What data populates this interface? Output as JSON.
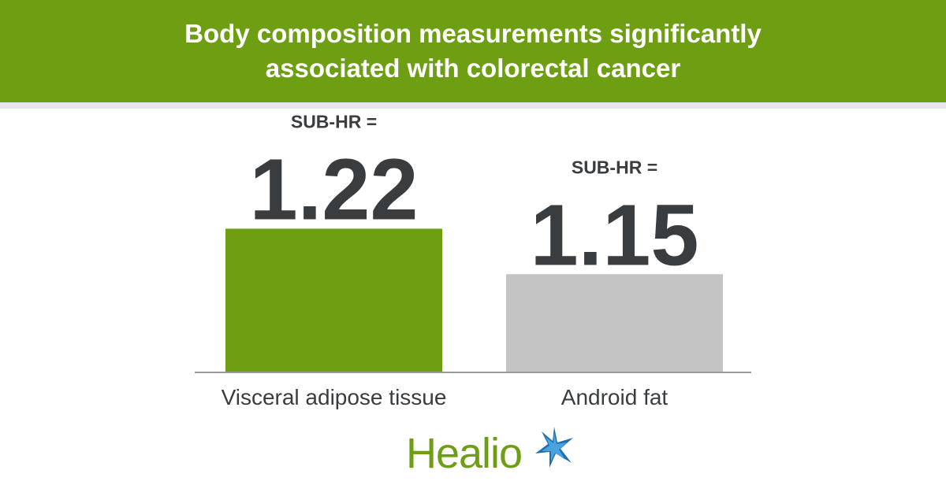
{
  "header": {
    "title": "Body composition measurements significantly associated with colorectal cancer"
  },
  "chart_data": {
    "type": "bar",
    "categories": [
      "Visceral adipose tissue",
      "Android fat"
    ],
    "values": [
      1.22,
      1.15
    ],
    "value_prefix": "SUB-HR =",
    "value_labels": [
      "1.22",
      "1.15"
    ],
    "colors": [
      "#6e9f13",
      "#c4c4c4"
    ],
    "ylim": [
      1.0,
      1.4
    ],
    "grid": false,
    "legend": "none"
  },
  "logo": {
    "text": "Healio",
    "icon": "star-burst-icon",
    "colors": [
      "#6e9f13",
      "#1f77b4"
    ]
  }
}
